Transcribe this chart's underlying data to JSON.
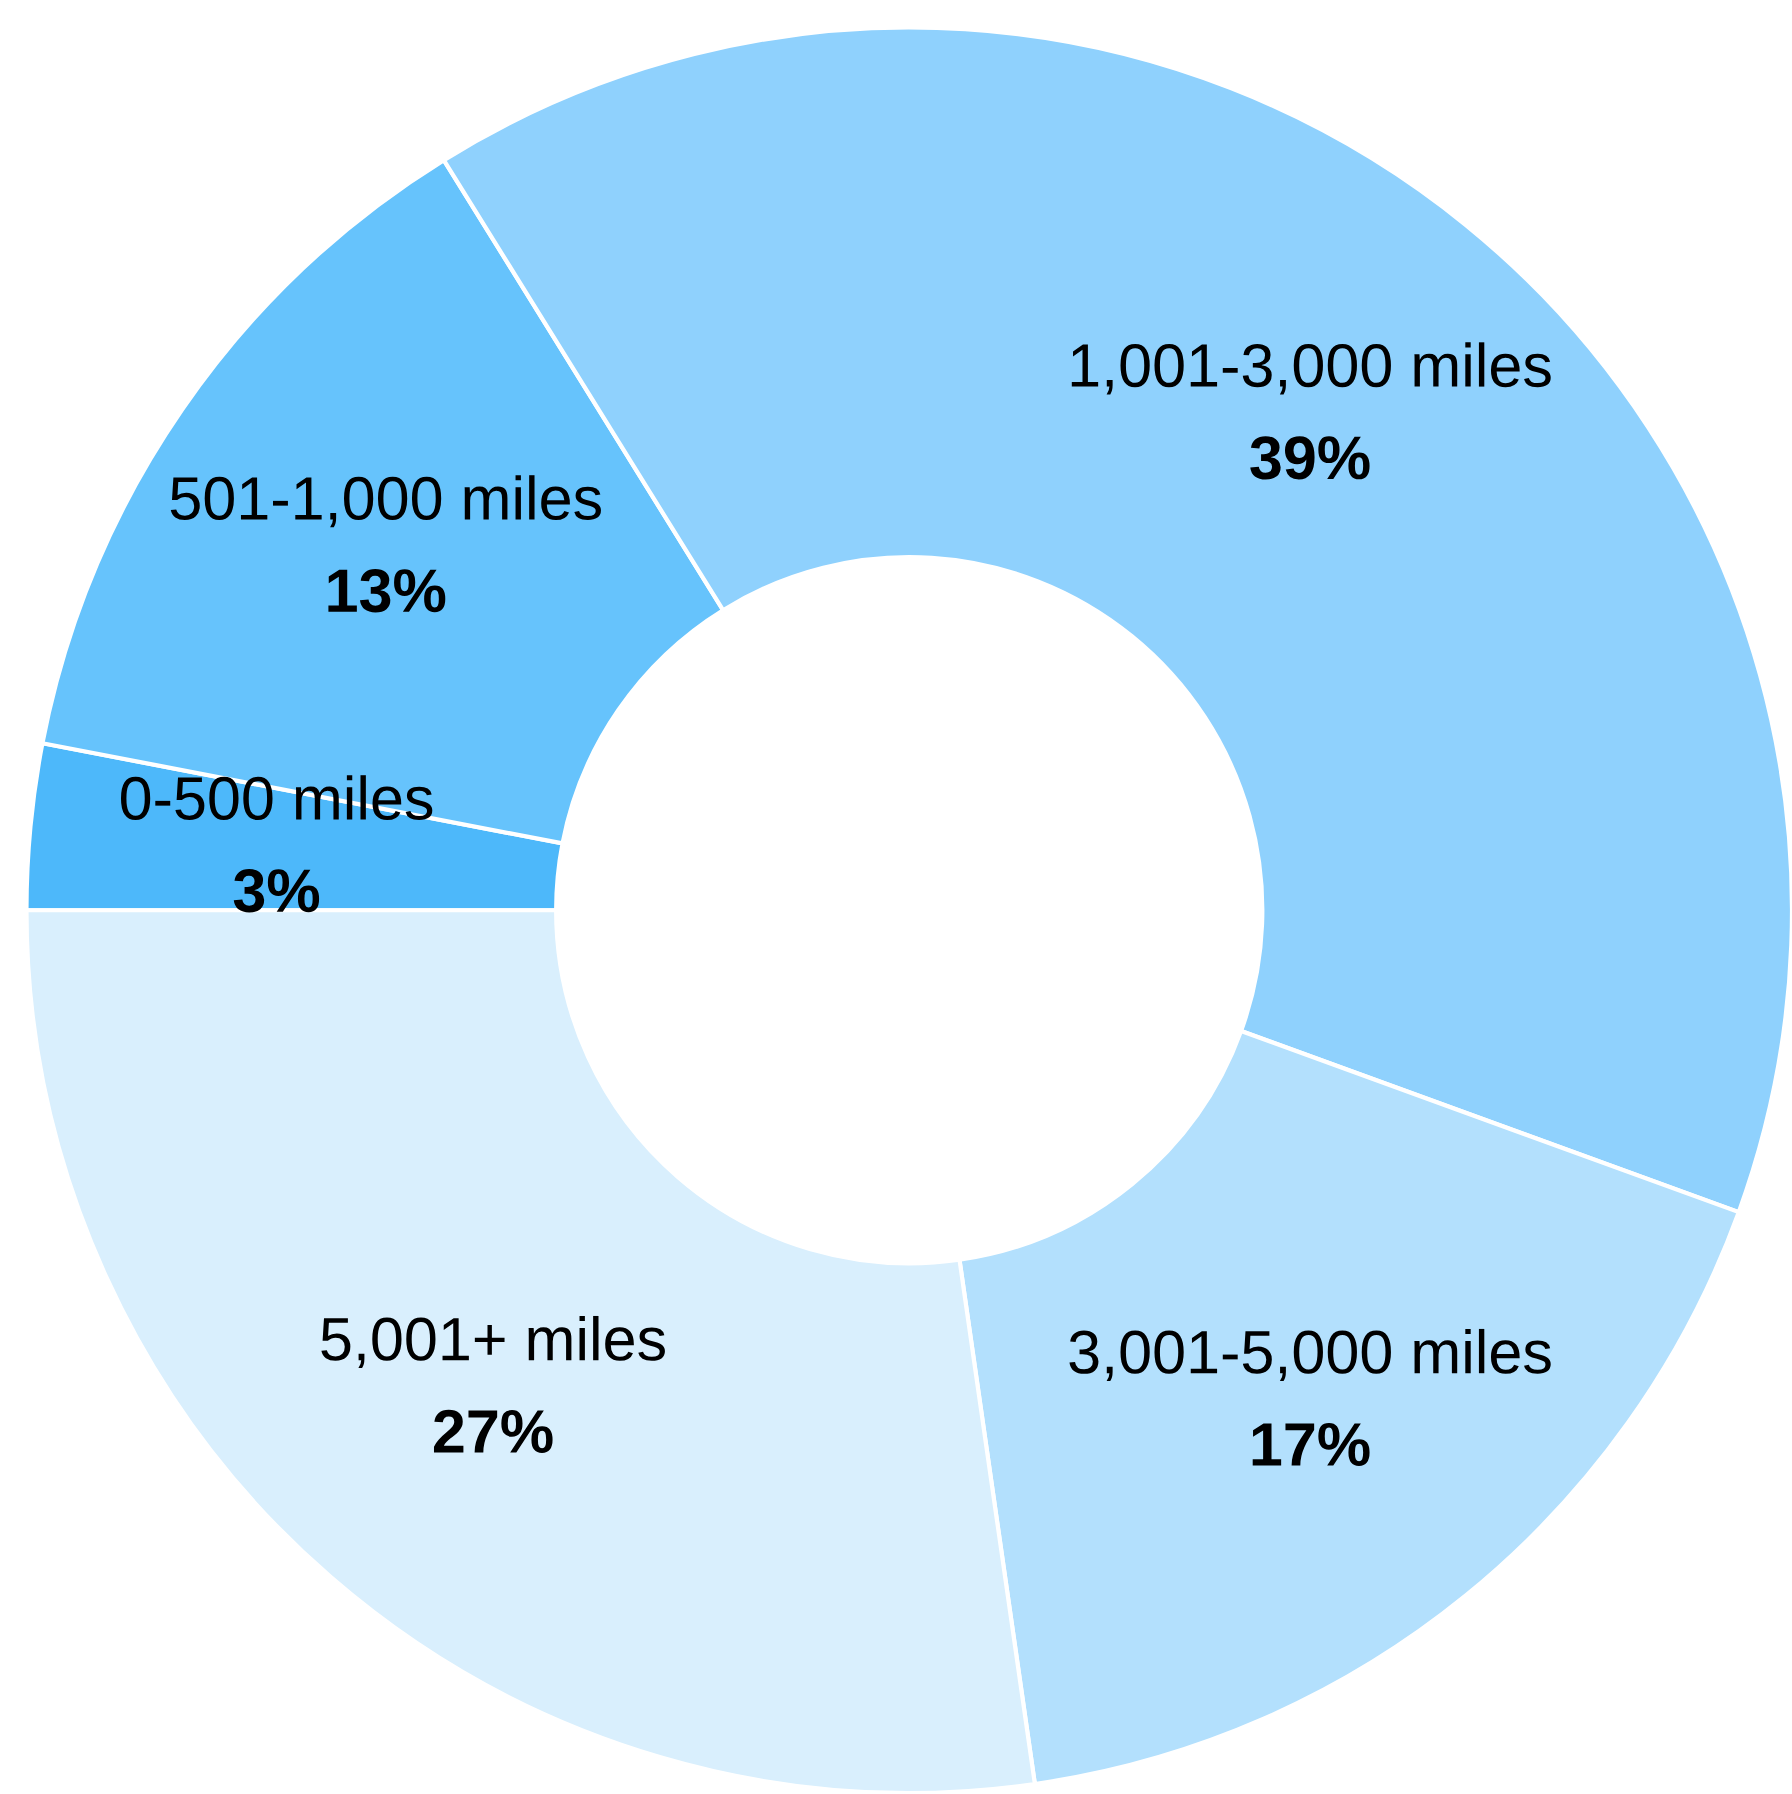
{
  "chart_data": {
    "type": "donut",
    "categories": [
      "0-500 miles",
      "501-1,000 miles",
      "1,001-3,000 miles",
      "3,001-5,000 miles",
      "5,001+ miles"
    ],
    "values": [
      3,
      13,
      39,
      17,
      27
    ],
    "value_labels": [
      "3%",
      "13%",
      "39%",
      "17%",
      "27%"
    ],
    "colors": [
      "#4db8fa",
      "#66c3fc",
      "#8fd1fd",
      "#b3e0fd",
      "#d9effd"
    ],
    "legend": false
  }
}
